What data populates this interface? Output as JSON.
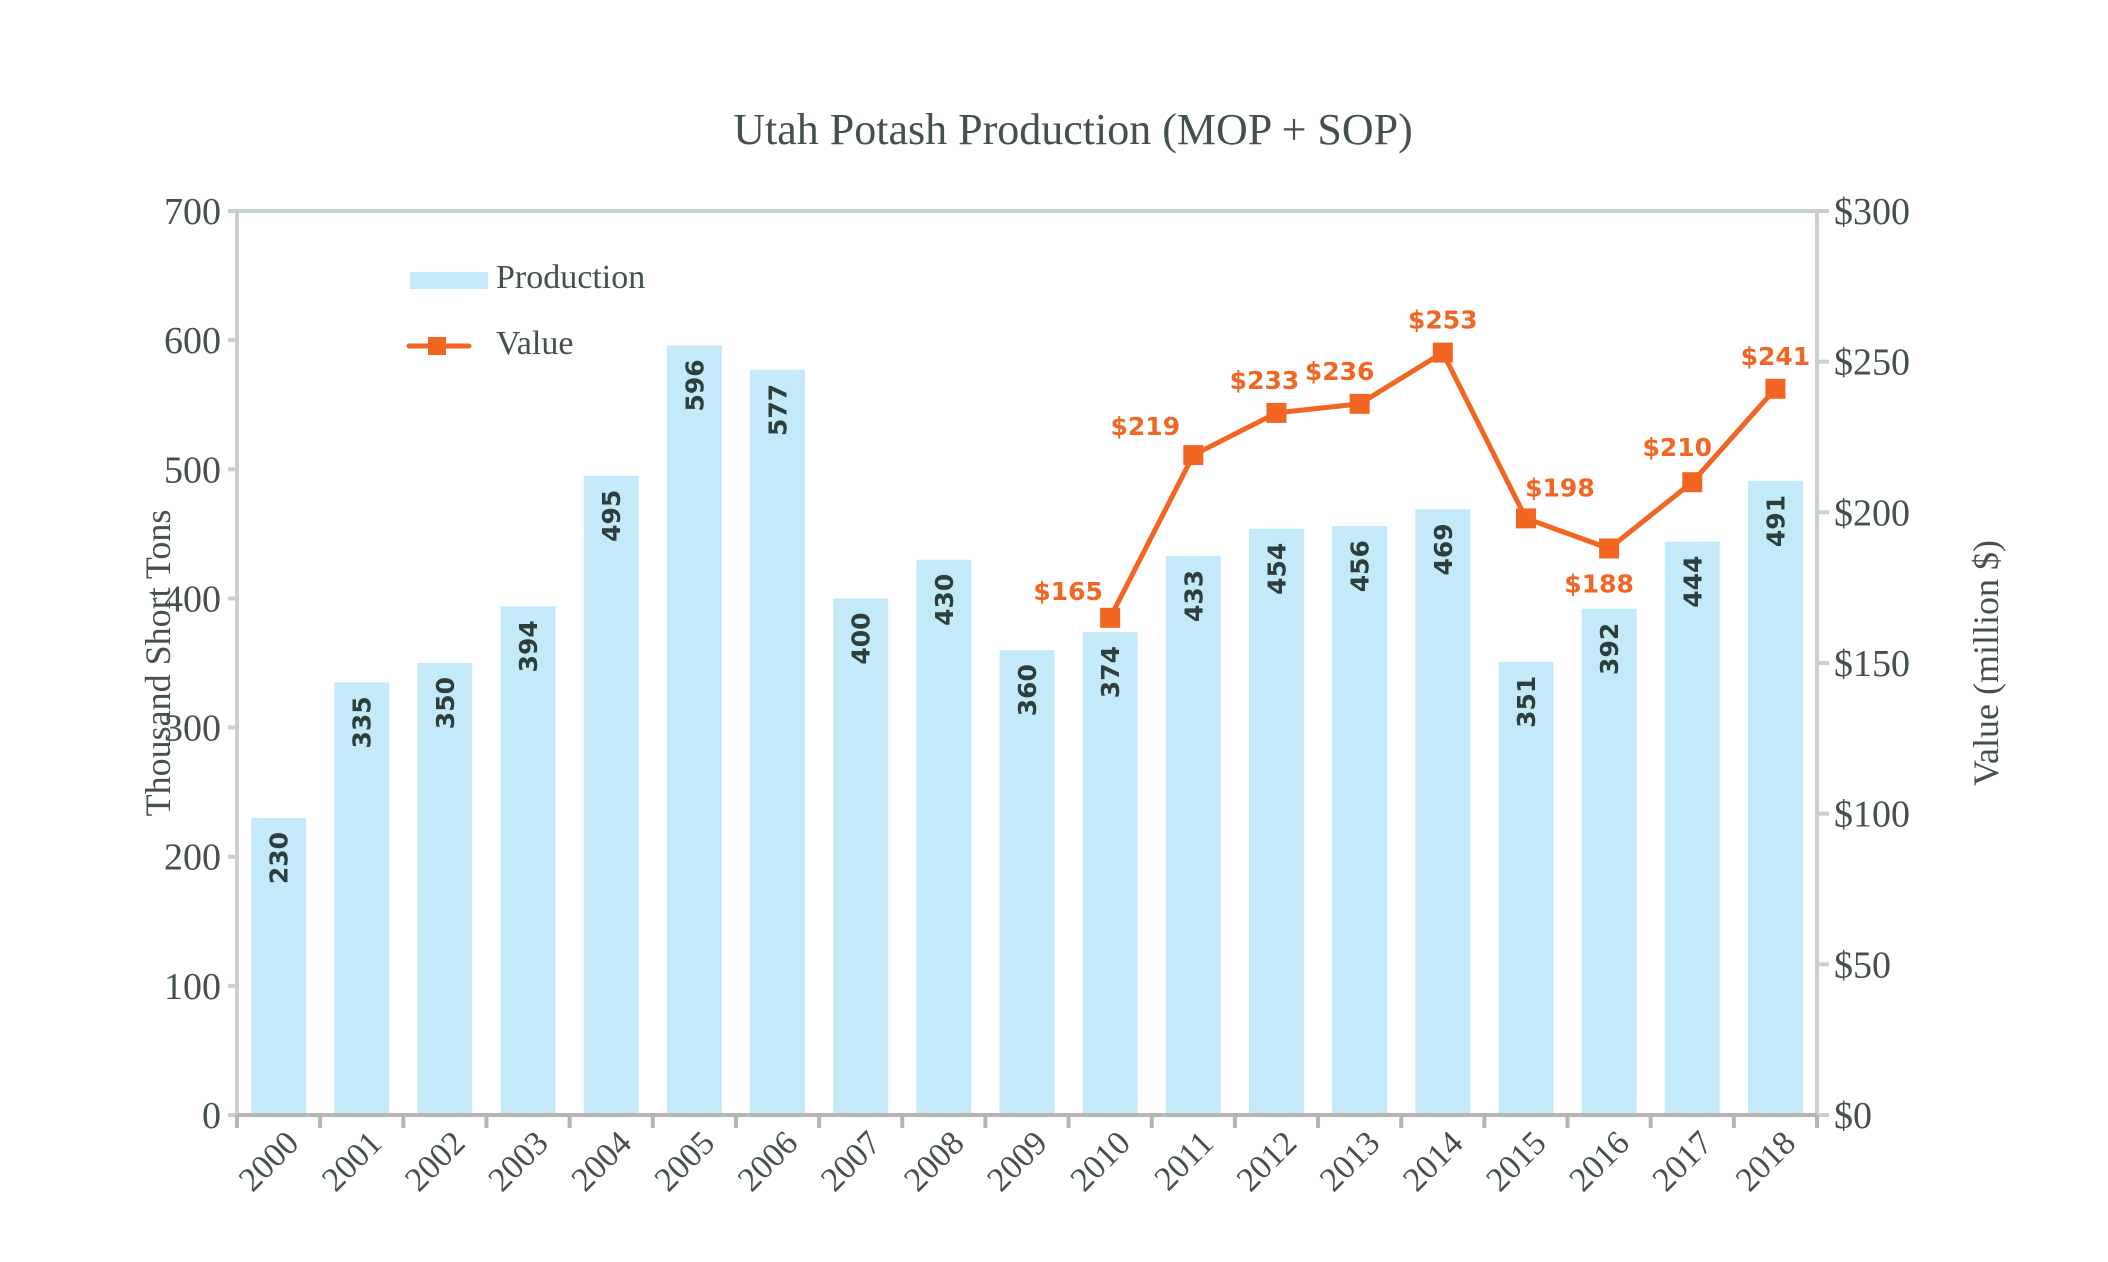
{
  "chart_data": {
    "type": "bar+line",
    "title": "Utah Potash Production (MOP + SOP)",
    "categories": [
      "2000",
      "2001",
      "2002",
      "2003",
      "2004",
      "2005",
      "2006",
      "2007",
      "2008",
      "2009",
      "2010",
      "2011",
      "2012",
      "2013",
      "2014",
      "2015",
      "2016",
      "2017",
      "2018"
    ],
    "series": [
      {
        "name": "Production",
        "type": "bar",
        "axis": "left",
        "color": "#c4eafa",
        "values": [
          230,
          335,
          350,
          394,
          495,
          596,
          577,
          400,
          430,
          360,
          374,
          433,
          454,
          456,
          469,
          351,
          392,
          444,
          491
        ],
        "labels": [
          "230",
          "335",
          "350",
          "394",
          "495",
          "596",
          "577",
          "400",
          "430",
          "360",
          "374",
          "433",
          "454",
          "456",
          "469",
          "351",
          "392",
          "444",
          "491"
        ]
      },
      {
        "name": "Value",
        "type": "line",
        "axis": "right",
        "color": "#f26522",
        "marker": "square",
        "values": [
          null,
          null,
          null,
          null,
          null,
          null,
          null,
          null,
          null,
          null,
          165,
          219,
          233,
          236,
          253,
          198,
          188,
          210,
          241
        ],
        "labels": [
          "",
          "",
          "",
          "",
          "",
          "",
          "",
          "",
          "",
          "",
          "$165",
          "$219",
          "$233",
          "$236",
          "$253",
          "$198",
          "$188",
          "$210",
          "$241"
        ]
      }
    ],
    "ylabel": "Thousand Short Tons",
    "ylabel_right": "Value (million $)",
    "ylim": [
      0,
      700
    ],
    "ylim_right": [
      0,
      300
    ],
    "yticks": [
      "0",
      "100",
      "200",
      "300",
      "400",
      "500",
      "600",
      "700"
    ],
    "yticks_right": [
      "$0",
      "$50",
      "$100",
      "$150",
      "$200",
      "$250",
      "$300"
    ],
    "grid": false,
    "legend_position": "top-left",
    "label_color": "#2f3d3c"
  }
}
